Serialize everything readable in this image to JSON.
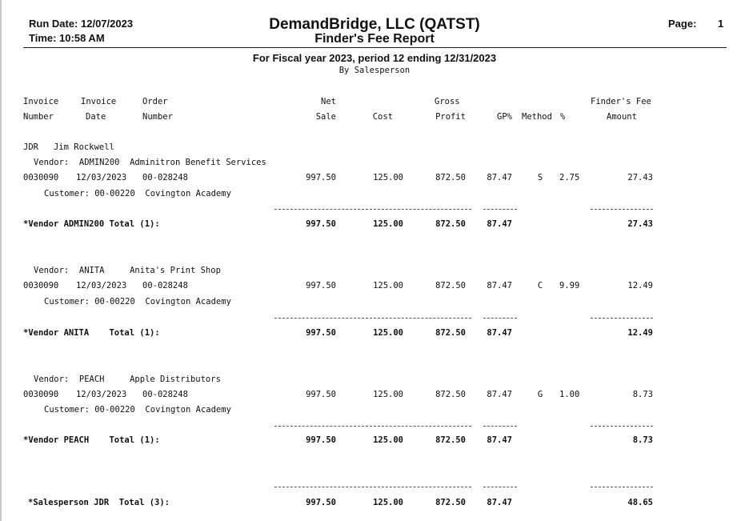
{
  "header": {
    "run_date": "Run Date: 12/07/2023",
    "time": "Time: 10:58 AM",
    "company": "DemandBridge, LLC (QATST)",
    "report_title": "Finder's Fee Report",
    "page_label": "Page:",
    "page_number": "1",
    "fiscal_line": "For Fiscal year 2023, period 12 ending 12/31/2023",
    "sort_line": "By Salesperson"
  },
  "columns": {
    "invoice_number": [
      "Invoice",
      "Number"
    ],
    "invoice_date": [
      "Invoice",
      "Date"
    ],
    "order_number": [
      "Order",
      "Number"
    ],
    "net_sale": [
      "Net",
      "Sale"
    ],
    "cost": "Cost",
    "gross_profit": [
      "Gross",
      "Profit"
    ],
    "gp_pct": "GP%",
    "method": "Method",
    "pct": "%",
    "finders_fee": [
      "Finder's Fee",
      "Amount"
    ]
  },
  "salesperson": {
    "code": "JDR",
    "name": "Jim Rockwell",
    "total_label": "*Salesperson JDR  Total (3):",
    "total": {
      "net_sale": "997.50",
      "cost": "125.00",
      "gross_profit": "872.50",
      "gp_pct": "87.47",
      "fee": "48.65"
    }
  },
  "vendors": [
    {
      "line": "Vendor:  ADMIN200  Adminitron Benefit Services",
      "row": {
        "invoice": "0030090",
        "date": "12/03/2023",
        "order": "00-028248",
        "net_sale": "997.50",
        "cost": "125.00",
        "gross_profit": "872.50",
        "gp_pct": "87.47",
        "method": "S",
        "pct": "2.75",
        "fee": "27.43"
      },
      "customer": "Customer: 00-00220  Covington Academy",
      "total_label": "*Vendor ADMIN200 Total (1):",
      "total": {
        "net_sale": "997.50",
        "cost": "125.00",
        "gross_profit": "872.50",
        "gp_pct": "87.47",
        "fee": "27.43"
      }
    },
    {
      "line": "Vendor:  ANITA     Anita's Print Shop",
      "row": {
        "invoice": "0030090",
        "date": "12/03/2023",
        "order": "00-028248",
        "net_sale": "997.50",
        "cost": "125.00",
        "gross_profit": "872.50",
        "gp_pct": "87.47",
        "method": "C",
        "pct": "9.99",
        "fee": "12.49"
      },
      "customer": "Customer: 00-00220  Covington Academy",
      "total_label": "*Vendor ANITA    Total (1):",
      "total": {
        "net_sale": "997.50",
        "cost": "125.00",
        "gross_profit": "872.50",
        "gp_pct": "87.47",
        "fee": "12.49"
      }
    },
    {
      "line": "Vendor:  PEACH     Apple Distributors",
      "row": {
        "invoice": "0030090",
        "date": "12/03/2023",
        "order": "00-028248",
        "net_sale": "997.50",
        "cost": "125.00",
        "gross_profit": "872.50",
        "gp_pct": "87.47",
        "method": "G",
        "pct": "1.00",
        "fee": "8.73"
      },
      "customer": "Customer: 00-00220  Covington Academy",
      "total_label": "*Vendor PEACH    Total (1):",
      "total": {
        "net_sale": "997.50",
        "cost": "125.00",
        "gross_profit": "872.50",
        "gp_pct": "87.47",
        "fee": "8.73"
      }
    }
  ]
}
